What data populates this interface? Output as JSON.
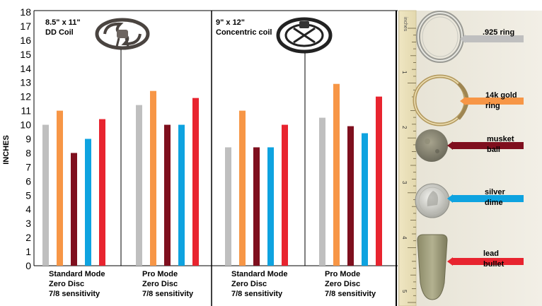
{
  "chart_data": {
    "type": "bar",
    "ylabel": "INCHES",
    "ylim": [
      0,
      18
    ],
    "yticks": [
      "0",
      "1",
      "2",
      "3",
      "4",
      "5",
      "6",
      "7",
      "8",
      "9",
      "10",
      "11",
      "12",
      "13",
      "14",
      "15",
      "16",
      "17",
      "18"
    ],
    "grid": false,
    "panels": [
      {
        "title": "8.5\" x 11\"\nDD Coil",
        "coil_icon": "dd-coil-icon"
      },
      {
        "title": "9\" x 12\"\nConcentric coil",
        "coil_icon": "concentric-coil-icon"
      }
    ],
    "categories": [
      "Standard Mode\nZero Disc\n7/8 sensitivity",
      "Pro Mode\nZero Disc\n7/8 sensitivity",
      "Standard Mode\nZero Disc\n7/8 sensitivity",
      "Pro Mode\nZero Disc\n7/8 sensitivity"
    ],
    "series": [
      {
        "name": ".925 ring",
        "color": "#bfbfbf",
        "values": [
          10.0,
          11.4,
          8.4,
          10.5
        ]
      },
      {
        "name": "14k gold ring",
        "color": "#f79646",
        "values": [
          11.0,
          12.4,
          11.0,
          12.9
        ]
      },
      {
        "name": "musket ball",
        "color": "#7f0f1e",
        "values": [
          8.0,
          10.0,
          8.4,
          9.9
        ]
      },
      {
        "name": "silver dime",
        "color": "#0ea3e0",
        "values": [
          9.0,
          10.0,
          8.4,
          9.4
        ]
      },
      {
        "name": "lead bullet",
        "color": "#e8242f",
        "values": [
          10.4,
          11.9,
          10.0,
          12.0
        ]
      }
    ]
  },
  "ruler_label": "inches",
  "ruler_numbers": [
    "1",
    "2",
    "3",
    "4",
    "5"
  ],
  "legend_labels": [
    ".925 ring",
    "14k gold\nring",
    "musket\nball",
    "silver\ndime",
    "lead\nbullet"
  ]
}
